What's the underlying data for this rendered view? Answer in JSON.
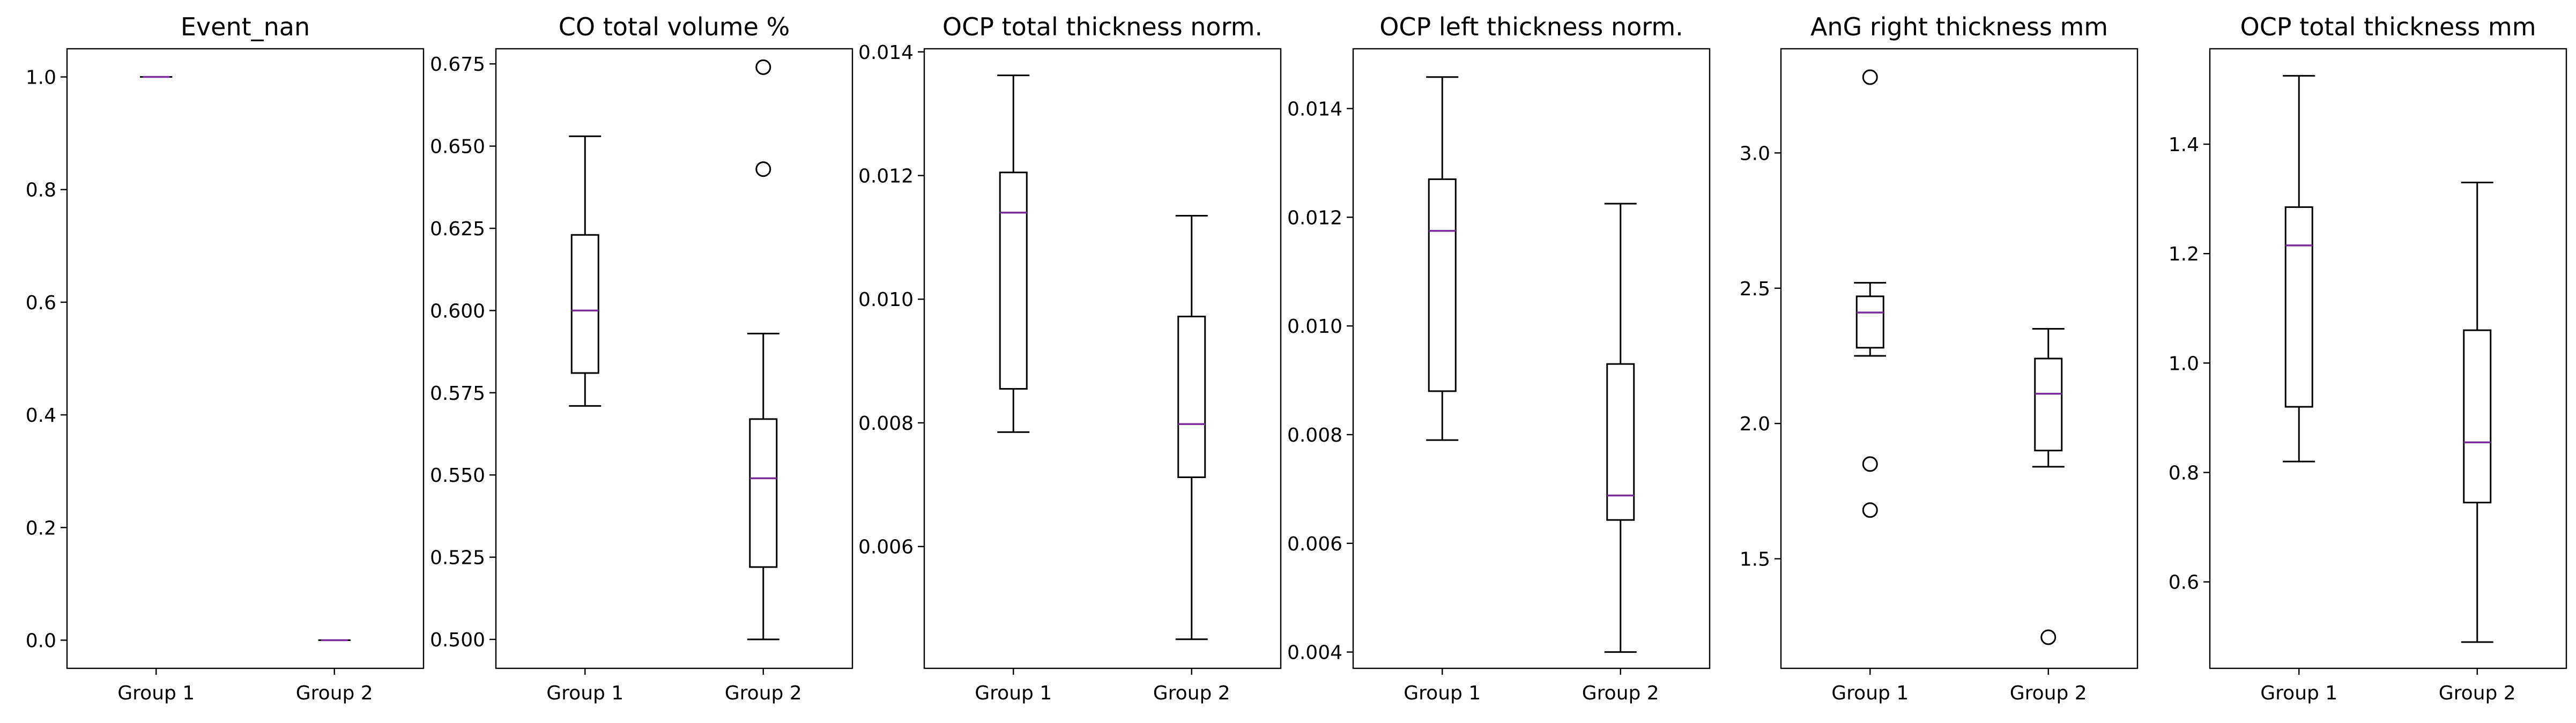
{
  "chart_data": [
    {
      "type": "box",
      "title": "Event_nan",
      "categories": [
        "Group 1",
        "Group 2"
      ],
      "ylim": [
        -0.05,
        1.05
      ],
      "yticks": [
        0.0,
        0.2,
        0.4,
        0.6,
        0.8,
        1.0
      ],
      "ytick_labels": [
        "0.0",
        "0.2",
        "0.4",
        "0.6",
        "0.8",
        "1.0"
      ],
      "median_color": "#7b2d9b",
      "series": [
        {
          "category": "Group 1",
          "whislo": 1.0,
          "q1": 1.0,
          "med": 1.0,
          "q3": 1.0,
          "whishi": 1.0,
          "fliers": []
        },
        {
          "category": "Group 2",
          "whislo": 0.0,
          "q1": 0.0,
          "med": 0.0,
          "q3": 0.0,
          "whishi": 0.0,
          "fliers": []
        }
      ]
    },
    {
      "type": "box",
      "title": "CO total volume %",
      "categories": [
        "Group 1",
        "Group 2"
      ],
      "ylim": [
        0.4912,
        0.6796
      ],
      "yticks": [
        0.5,
        0.525,
        0.55,
        0.575,
        0.6,
        0.625,
        0.65,
        0.675
      ],
      "ytick_labels": [
        "0.500",
        "0.525",
        "0.550",
        "0.575",
        "0.600",
        "0.625",
        "0.650",
        "0.675"
      ],
      "median_color": "#7b2d9b",
      "series": [
        {
          "category": "Group 1",
          "whislo": 0.571,
          "q1": 0.581,
          "med": 0.6,
          "q3": 0.623,
          "whishi": 0.653,
          "fliers": []
        },
        {
          "category": "Group 2",
          "whislo": 0.5,
          "q1": 0.522,
          "med": 0.549,
          "q3": 0.567,
          "whishi": 0.593,
          "fliers": [
            0.643,
            0.674
          ]
        }
      ]
    },
    {
      "type": "box",
      "title": "OCP total thickness norm.",
      "categories": [
        "Group 1",
        "Group 2"
      ],
      "ylim": [
        0.00403,
        0.01405
      ],
      "yticks": [
        0.006,
        0.008,
        0.01,
        0.012,
        0.014
      ],
      "ytick_labels": [
        "0.006",
        "0.008",
        "0.010",
        "0.012",
        "0.014"
      ],
      "median_color": "#7b2d9b",
      "series": [
        {
          "category": "Group 1",
          "whislo": 0.00785,
          "q1": 0.00855,
          "med": 0.0114,
          "q3": 0.01205,
          "whishi": 0.01362,
          "fliers": []
        },
        {
          "category": "Group 2",
          "whislo": 0.0045,
          "q1": 0.00712,
          "med": 0.00798,
          "q3": 0.00972,
          "whishi": 0.01135,
          "fliers": []
        }
      ]
    },
    {
      "type": "box",
      "title": "OCP left thickness norm.",
      "categories": [
        "Group 1",
        "Group 2"
      ],
      "ylim": [
        0.0037,
        0.0151
      ],
      "yticks": [
        0.004,
        0.006,
        0.008,
        0.01,
        0.012,
        0.014
      ],
      "ytick_labels": [
        "0.004",
        "0.006",
        "0.008",
        "0.010",
        "0.012",
        "0.014"
      ],
      "median_color": "#7b2d9b",
      "series": [
        {
          "category": "Group 1",
          "whislo": 0.0079,
          "q1": 0.0088,
          "med": 0.01175,
          "q3": 0.0127,
          "whishi": 0.01458,
          "fliers": []
        },
        {
          "category": "Group 2",
          "whislo": 0.004,
          "q1": 0.00643,
          "med": 0.00688,
          "q3": 0.0093,
          "whishi": 0.01225,
          "fliers": []
        }
      ]
    },
    {
      "type": "box",
      "title": "AnG right thickness mm",
      "categories": [
        "Group 1",
        "Group 2"
      ],
      "ylim": [
        1.095,
        3.385
      ],
      "yticks": [
        1.5,
        2.0,
        2.5,
        3.0
      ],
      "ytick_labels": [
        "1.5",
        "2.0",
        "2.5",
        "3.0"
      ],
      "median_color": "#7b2d9b",
      "series": [
        {
          "category": "Group 1",
          "whislo": 2.25,
          "q1": 2.28,
          "med": 2.41,
          "q3": 2.47,
          "whishi": 2.52,
          "fliers": [
            1.85,
            1.68,
            3.28
          ]
        },
        {
          "category": "Group 2",
          "whislo": 1.84,
          "q1": 1.9,
          "med": 2.11,
          "q3": 2.24,
          "whishi": 2.35,
          "fliers": [
            1.21
          ]
        }
      ]
    },
    {
      "type": "box",
      "title": "OCP total thickness mm",
      "categories": [
        "Group 1",
        "Group 2"
      ],
      "ylim": [
        0.442,
        1.5744
      ],
      "yticks": [
        0.6,
        0.8,
        1.0,
        1.2,
        1.4
      ],
      "ytick_labels": [
        "0.6",
        "0.8",
        "1.0",
        "1.2",
        "1.4"
      ],
      "median_color": "#7b2d9b",
      "series": [
        {
          "category": "Group 1",
          "whislo": 0.82,
          "q1": 0.92,
          "med": 1.215,
          "q3": 1.285,
          "whishi": 1.525,
          "fliers": []
        },
        {
          "category": "Group 2",
          "whislo": 0.49,
          "q1": 0.745,
          "med": 0.855,
          "q3": 1.06,
          "whishi": 1.33,
          "fliers": []
        }
      ]
    }
  ]
}
